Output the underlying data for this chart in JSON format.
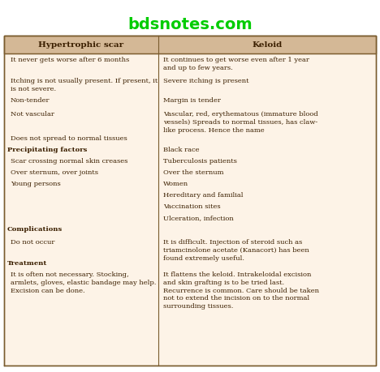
{
  "title": "bdsnotes.com",
  "header_bg": "#d4b896",
  "body_bg": "#fdf3e7",
  "header_text_color": "#3b1f00",
  "body_text_color": "#3b1f00",
  "title_color": "#00cc00",
  "col1_header": "Hypertrophic scar",
  "col2_header": "Keloid",
  "col_split": 0.415,
  "rows": [
    {
      "col1": "It never gets worse after 6 months",
      "col1_bold": false,
      "col2": "It continues to get worse even after 1 year\nand up to few years.",
      "col2_segments": [
        [
          "It continues to get worse even after 1 year\nand ",
          false
        ],
        [
          "up to few years.",
          true
        ]
      ]
    },
    {
      "col1": "Itching is not usually present. If present, it\nis not severe.",
      "col1_bold": false,
      "col2": "Severe itching is present",
      "col2_segments": [
        [
          "Severe itching is present",
          false
        ]
      ]
    },
    {
      "col1": "Non-tender",
      "col1_bold": false,
      "col2": "Margin is tender",
      "col2_segments": [
        [
          "Margin is tender",
          false
        ]
      ]
    },
    {
      "col1": "Not vascular",
      "col1_bold": false,
      "col2": "Vascular, red, erythematous (immature blood\nvessels) Spreads to normal tissues, has claw-\nlike process. Hence the name",
      "col2_segments": [
        [
          "Vascular, red, erythematous (immature blood\nvessels) Spreads to normal tissues, has claw-\nlike process. Hence the name",
          false
        ]
      ]
    },
    {
      "col1": "Does not spread to normal tissues",
      "col1_bold": false,
      "col2": "",
      "col2_segments": []
    },
    {
      "col1": "Precipitating factors",
      "col1_bold": true,
      "col2": "Black race",
      "col2_segments": [
        [
          "Black race",
          false
        ]
      ]
    },
    {
      "col1": "Scar crossing normal skin creases",
      "col1_bold": false,
      "col2": "Tuberculosis patients",
      "col2_segments": [
        [
          "Tuberculosis patients",
          false
        ]
      ]
    },
    {
      "col1": "Over sternum, over joints",
      "col1_bold": false,
      "col2": "Over the sternum",
      "col2_segments": [
        [
          "Over the sternum",
          false
        ]
      ]
    },
    {
      "col1": "Young persons",
      "col1_bold": false,
      "col2": "Women",
      "col2_segments": [
        [
          "Women",
          false
        ]
      ]
    },
    {
      "col1": "",
      "col1_bold": false,
      "col2": "Hereditary and familial",
      "col2_segments": [
        [
          "Hereditary and familial",
          false
        ]
      ]
    },
    {
      "col1": "",
      "col1_bold": false,
      "col2": "Vaccination sites",
      "col2_segments": [
        [
          "Vaccination sites",
          false
        ]
      ]
    },
    {
      "col1": "",
      "col1_bold": false,
      "col2": "Ulceration, infection",
      "col2_segments": [
        [
          "Ulceration, infection",
          false
        ]
      ]
    },
    {
      "col1": "Complications",
      "col1_bold": true,
      "col2": "",
      "col2_segments": []
    },
    {
      "col1": "Do not occur",
      "col1_bold": false,
      "col2": "It is difficult. Injection of steroid such as\ntriamcinolone acetate (Kanacort) has been\nfound extremely useful.",
      "col2_segments": [
        [
          "It is difficult. Injection of steroid such as\ntriamcinolone acetate (Kanacort) has been\nfound extremely useful.",
          false
        ]
      ]
    },
    {
      "col1": "Treatment",
      "col1_bold": true,
      "col2": "",
      "col2_segments": []
    },
    {
      "col1_segments": [
        [
          "It is often not necessary. Stocking,\narmlets, gloves, ",
          false
        ],
        [
          "elastic bandage may help.",
          true
        ],
        [
          "\nExcision can be done.",
          false
        ]
      ],
      "col1_bold": false,
      "col1": "It is often not necessary. Stocking,\narmlets, gloves, elastic bandage may help.\nExcision can be done.",
      "col2": "It flattens the keloid. Intrakeloidal excision\nand skin grafting is to be tried last.\nRecurrence is common. Care should be taken\nnot to extend the incision on to the normal\nsurrounding tissues.",
      "col2_segments": [
        [
          "It flattens the keloid. ",
          false
        ],
        [
          "Intrakeloidal excision",
          true
        ],
        [
          "\nand skin grafting is to be tried last.\nRecurrence is common. Care should be taken\n",
          false
        ],
        [
          "not to extend the incision",
          true
        ],
        [
          " on to ",
          false
        ],
        [
          "the normal",
          true
        ],
        [
          "\nsurrounding tissues.",
          false
        ]
      ]
    }
  ]
}
